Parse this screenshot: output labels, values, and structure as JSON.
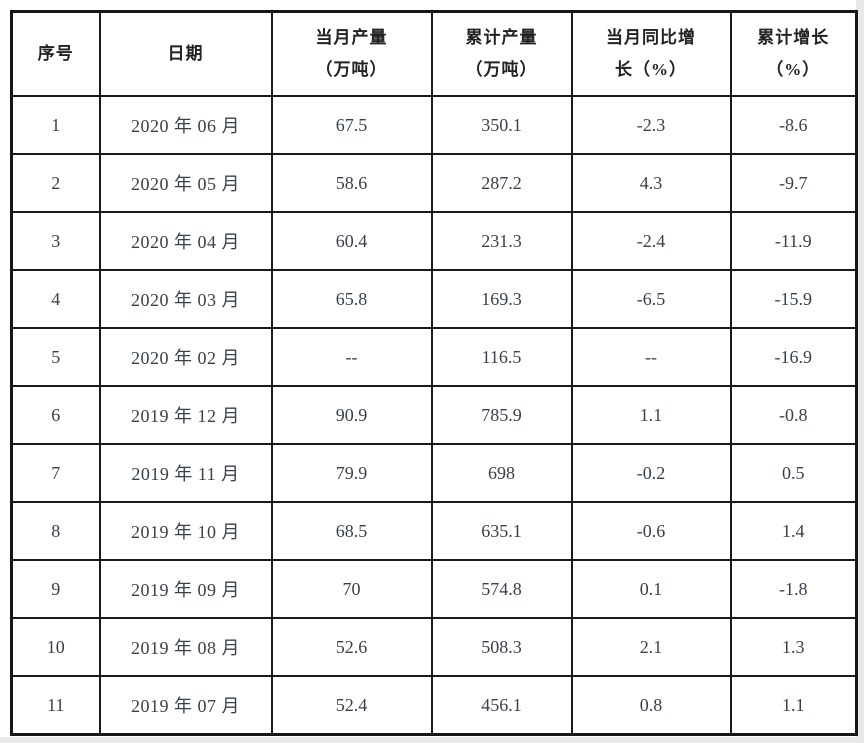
{
  "chart_data": {
    "type": "table",
    "columns": [
      {
        "lines": [
          "序号"
        ]
      },
      {
        "lines": [
          "日期"
        ]
      },
      {
        "lines": [
          "当月产量",
          "（万吨）"
        ]
      },
      {
        "lines": [
          "累计产量",
          "（万吨）"
        ]
      },
      {
        "lines": [
          "当月同比增",
          "长（%）"
        ]
      },
      {
        "lines": [
          "累计增长",
          "（%）"
        ]
      }
    ],
    "rows": [
      [
        "1",
        "2020 年 06 月",
        "67.5",
        "350.1",
        "-2.3",
        "-8.6"
      ],
      [
        "2",
        "2020 年 05 月",
        "58.6",
        "287.2",
        "4.3",
        "-9.7"
      ],
      [
        "3",
        "2020 年 04 月",
        "60.4",
        "231.3",
        "-2.4",
        "-11.9"
      ],
      [
        "4",
        "2020 年 03 月",
        "65.8",
        "169.3",
        "-6.5",
        "-15.9"
      ],
      [
        "5",
        "2020 年 02 月",
        "--",
        "116.5",
        "--",
        "-16.9"
      ],
      [
        "6",
        "2019 年 12 月",
        "90.9",
        "785.9",
        "1.1",
        "-0.8"
      ],
      [
        "7",
        "2019 年 11 月",
        "79.9",
        "698",
        "-0.2",
        "0.5"
      ],
      [
        "8",
        "2019 年 10 月",
        "68.5",
        "635.1",
        "-0.6",
        "1.4"
      ],
      [
        "9",
        "2019 年 09 月",
        "70",
        "574.8",
        "0.1",
        "-1.8"
      ],
      [
        "10",
        "2019 年 08 月",
        "52.6",
        "508.3",
        "2.1",
        "1.3"
      ],
      [
        "11",
        "2019 年 07 月",
        "52.4",
        "456.1",
        "0.8",
        "1.1"
      ]
    ],
    "layout": {
      "grid": "all-borders",
      "header_rows": 1
    },
    "colors": {
      "border": "#1b1b1b",
      "outer_border": "#161616",
      "header_text": "#222222",
      "cell_text": "#39404d",
      "cell_background": "#ffffff",
      "page_edge": "#e8e8e8"
    }
  }
}
